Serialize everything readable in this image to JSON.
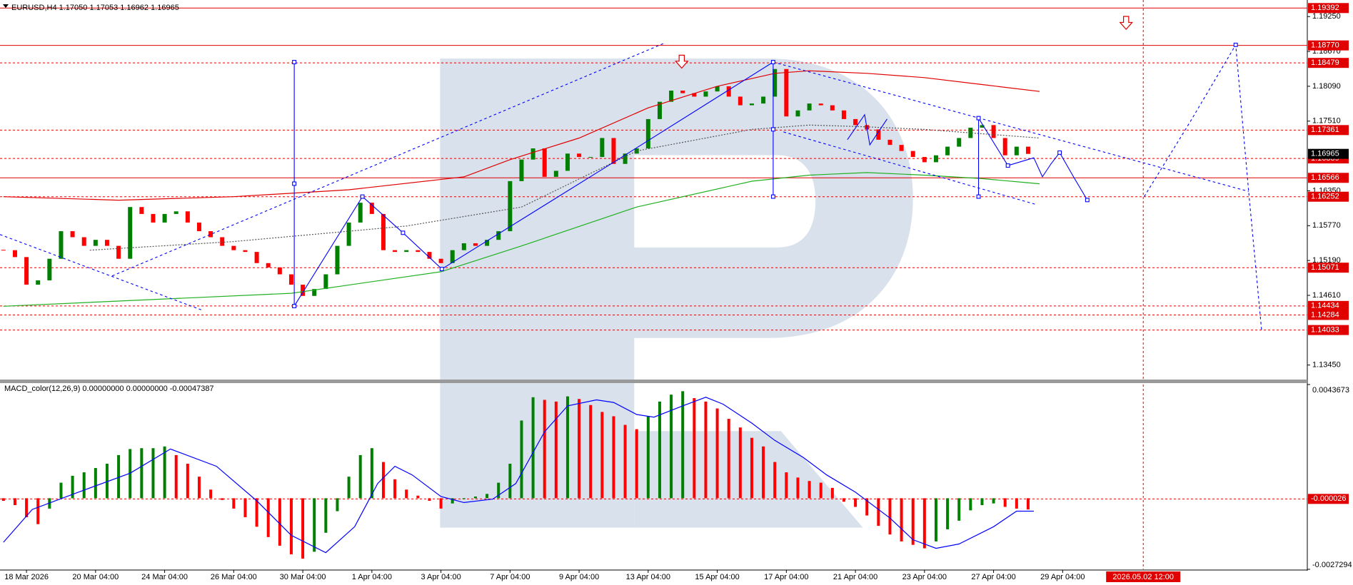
{
  "chart_data": [
    {
      "type": "candlestick",
      "title": "EURUSD,H4  1.17050 1.17053 1.16962 1.16965",
      "up_color": "#008000",
      "down_color": "#ff0000",
      "x": [
        0,
        2,
        4,
        6,
        8,
        10,
        12,
        14,
        16,
        18,
        20,
        22,
        24,
        26,
        28,
        30,
        32,
        34,
        36,
        38,
        40,
        42,
        44,
        46,
        48,
        50,
        52,
        54,
        56,
        58,
        60,
        62,
        64,
        66,
        68,
        70,
        72,
        74,
        76,
        78,
        80,
        82,
        84,
        86,
        88,
        90,
        92,
        94,
        96,
        98,
        100,
        102,
        104,
        106,
        108,
        110,
        112,
        114,
        116,
        118,
        120,
        122,
        124,
        126,
        128,
        130,
        132,
        134,
        136,
        138,
        140,
        142,
        144,
        146,
        148,
        150,
        152,
        154,
        156,
        158,
        160,
        162,
        164,
        166,
        168,
        170,
        172,
        174,
        176,
        178
      ],
      "close": [
        1.15362,
        1.15247,
        1.14788,
        1.1486,
        1.15219,
        1.15678,
        1.15578,
        1.15434,
        1.15534,
        1.15434,
        1.15219,
        1.1608,
        1.15965,
        1.15822,
        1.15965,
        1.16008,
        1.15822,
        1.15678,
        1.15578,
        1.15434,
        1.15362,
        1.15333,
        1.15147,
        1.15075,
        1.1496,
        1.14788,
        1.14601,
        1.14716,
        1.1496,
        1.15434,
        1.15822,
        1.16152,
        1.15965,
        1.15362,
        1.15333,
        1.15362,
        1.15333,
        1.15219,
        1.15147,
        1.15362,
        1.15477,
        1.15434,
        1.15534,
        1.15678,
        1.16511,
        1.1687,
        1.17056,
        1.16583,
        1.16683,
        1.1697,
        1.16913,
        1.16913,
        1.17229,
        1.16798,
        1.1697,
        1.17056,
        1.17544,
        1.17832,
        1.18018,
        1.17975,
        1.17918,
        1.18004,
        1.1809,
        1.17918,
        1.17774,
        1.17803,
        1.17918,
        1.18377,
        1.17588,
        1.17688,
        1.17803,
        1.17774,
        1.17688,
        1.17544,
        1.17444,
        1.17372,
        1.172,
        1.17114,
        1.17013,
        1.16913,
        1.16826,
        1.16941,
        1.17085,
        1.17229,
        1.17401,
        1.17444,
        1.17229,
        1.16941,
        1.17085,
        1.16965
      ],
      "series": [
        {
          "color": "#e00000",
          "dash": false,
          "x": [
            0,
            20,
            40,
            60,
            80,
            88,
            100,
            112,
            124,
            134,
            140,
            150,
            160,
            170,
            180
          ],
          "values": [
            1.16252,
            1.16194,
            1.16252,
            1.16367,
            1.16582,
            1.16869,
            1.17228,
            1.17731,
            1.1809,
            1.18305,
            1.18348,
            1.18305,
            1.18234,
            1.18119,
            1.18004
          ]
        },
        {
          "color": "#20b020",
          "dash": false,
          "x": [
            0,
            50,
            76,
            90,
            110,
            130,
            140,
            150,
            160,
            170,
            180
          ],
          "values": [
            1.14428,
            1.14644,
            1.15003,
            1.15433,
            1.1608,
            1.1651,
            1.16611,
            1.16654,
            1.16611,
            1.16553,
            1.16467
          ]
        },
        {
          "color": "#555555",
          "dash": true,
          "x": [
            15,
            40,
            70,
            90,
            110,
            130,
            140,
            150,
            160,
            170,
            180
          ],
          "values": [
            1.15362,
            1.15505,
            1.15764,
            1.1608,
            1.17013,
            1.17372,
            1.17444,
            1.17415,
            1.17372,
            1.173,
            1.17228
          ]
        }
      ],
      "xlim": [
        -0.6,
        226.5
      ],
      "ylim": [
        1.13209,
        1.19526
      ],
      "yticks": [
        {
          "value": 1.1925,
          "label": "1.19250"
        },
        {
          "value": 1.1867,
          "label": "1.18670"
        },
        {
          "value": 1.1809,
          "label": "1.18090"
        },
        {
          "value": 1.1751,
          "label": "1.17510"
        },
        {
          "value": 1.1635,
          "label": "1.16350"
        },
        {
          "value": 1.1577,
          "label": "1.15770"
        },
        {
          "value": 1.1519,
          "label": "1.15190"
        },
        {
          "value": 1.1461,
          "label": "1.14610"
        },
        {
          "value": 1.1345,
          "label": "1.13450"
        }
      ],
      "solid_levels": [
        1.19392,
        {
          "value": 1.1877,
          "label": "1.18770"
        },
        1.16566
      ],
      "dashed_levels": [
        1.18479,
        1.17361,
        1.16889,
        1.16252,
        1.15071,
        1.14434,
        1.14284,
        1.14033
      ],
      "current_price": 1.16965,
      "cursor": 198
    },
    {
      "type": "bar",
      "title": "MACD_color(12,26,9) 0.00000000 0.00000000 -0.00047387",
      "up_color": "#008000",
      "down_color": "#ff0000",
      "x": [
        0,
        2,
        4,
        6,
        8,
        10,
        12,
        14,
        16,
        18,
        20,
        22,
        24,
        26,
        28,
        30,
        32,
        34,
        36,
        38,
        40,
        42,
        44,
        46,
        48,
        50,
        52,
        54,
        56,
        58,
        60,
        62,
        64,
        66,
        68,
        70,
        72,
        74,
        76,
        78,
        80,
        82,
        84,
        86,
        88,
        90,
        92,
        94,
        96,
        98,
        100,
        102,
        104,
        106,
        108,
        110,
        112,
        114,
        116,
        118,
        120,
        122,
        124,
        126,
        128,
        130,
        132,
        134,
        136,
        138,
        140,
        142,
        144,
        146,
        148,
        150,
        152,
        154,
        156,
        158,
        160,
        162,
        164,
        166,
        168,
        170,
        172,
        174,
        176,
        178
      ],
      "values": [
        -9.9e-05,
        -0.000265,
        -0.000729,
        -0.000995,
        -0.000398,
        0.000597,
        0.000862,
        0.000995,
        0.00116,
        0.001326,
        0.001658,
        0.00189,
        0.001923,
        0.001923,
        0.001989,
        0.001658,
        0.001326,
        0.000829,
        0.000332,
        -6.6e-05,
        -0.000398,
        -0.000729,
        -0.001094,
        -0.001492,
        -0.001823,
        -0.002155,
        -0.002321,
        -0.002055,
        -0.001326,
        -0.000497,
        0.000829,
        0.001658,
        0.001923,
        0.001392,
        0.000729,
        0.000332,
        9.9e-05,
        -9.9e-05,
        -0.000398,
        -0.000199,
        -3.3e-05,
        6.6e-05,
        0.000166,
        0.000597,
        0.001326,
        0.002984,
        0.003879,
        0.003779,
        0.003713,
        0.003912,
        0.003812,
        0.00358,
        0.003315,
        0.003149,
        0.002818,
        0.002652,
        0.003149,
        0.003713,
        0.003978,
        0.004111,
        0.003845,
        0.003713,
        0.003448,
        0.00305,
        0.002718,
        0.002321,
        0.001989,
        0.001392,
        0.000995,
        0.000796,
        0.000663,
        0.000597,
        0.000398,
        -0.000133,
        -0.000332,
        -0.000663,
        -0.001061,
        -0.001392,
        -0.001658,
        -0.00179,
        -0.001923,
        -0.001658,
        -0.001193,
        -0.000862,
        -0.000464,
        -0.000265,
        -0.000199,
        -0.000332,
        -0.000398,
        -0.000431
      ],
      "series": [
        {
          "color": "#0000ff",
          "dash": false,
          "x": [
            0,
            5,
            13,
            22,
            29,
            37,
            44,
            50,
            56,
            61,
            65,
            68,
            71,
            76,
            80,
            85,
            89,
            94,
            98,
            103,
            106,
            110,
            113,
            118,
            122,
            125,
            130,
            134,
            139,
            143,
            148,
            154,
            158,
            162,
            166,
            172,
            176,
            179
          ],
          "values": [
            -0.001691,
            -0.000431,
            0.000232,
            0.000961,
            0.00189,
            0.001227,
            -9.9e-05,
            -0.001425,
            -0.002088,
            -0.001094,
            0.000564,
            0.001227,
            0.000895,
            6.6e-05,
            -0.000166,
            -3.3e-05,
            0.000564,
            0.002553,
            0.003547,
            0.003779,
            0.00368,
            0.003216,
            0.003116,
            0.003547,
            0.003879,
            0.003613,
            0.002884,
            0.002221,
            0.001558,
            0.000895,
            0.000232,
            -0.000762,
            -0.001591,
            -0.001923,
            -0.001757,
            -0.001094,
            -0.000497,
            -0.000497
          ]
        }
      ],
      "xlim": [
        -0.6,
        226.5
      ],
      "ylim": [
        -0.0027294,
        0.0043673
      ],
      "yticks": [
        0.0043673,
        -0.0027294
      ],
      "dashed_levels": [
        -2.6e-05
      ],
      "xticks": [
        {
          "value": 4,
          "label": "18 Mar 2026"
        },
        {
          "value": 16,
          "label": "20 Mar 04:00"
        },
        {
          "value": 28,
          "label": "24 Mar 04:00"
        },
        {
          "value": 40,
          "label": "26 Mar 04:00"
        },
        {
          "value": 52,
          "label": "30 Mar 04:00"
        },
        {
          "value": 64,
          "label": "1 Apr 04:00"
        },
        {
          "value": 76,
          "label": "3 Apr 04:00"
        },
        {
          "value": 88,
          "label": "7 Apr 04:00"
        },
        {
          "value": 100,
          "label": "9 Apr 04:00"
        },
        {
          "value": 112,
          "label": "13 Apr 04:00"
        },
        {
          "value": 124,
          "label": "15 Apr 04:00"
        },
        {
          "value": 136,
          "label": "17 Apr 04:00"
        },
        {
          "value": 148,
          "label": "21 Apr 04:00"
        },
        {
          "value": 160,
          "label": "23 Apr 04:00"
        },
        {
          "value": 172,
          "label": "27 Apr 04:00"
        },
        {
          "value": 184,
          "label": "29 Apr 04:00"
        }
      ],
      "cursor": {
        "value": 198,
        "label": "2026.05.02 12:00"
      }
    }
  ]
}
